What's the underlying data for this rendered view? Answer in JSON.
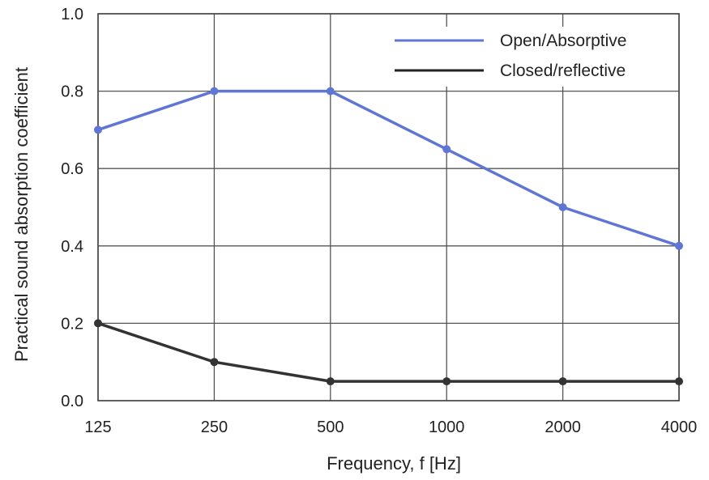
{
  "chart_data": {
    "type": "line",
    "title": "",
    "xlabel": "Frequency, f [Hz]",
    "ylabel": "Practical sound absorption coefficient",
    "categories": [
      "125",
      "250",
      "500",
      "1000",
      "2000",
      "4000"
    ],
    "ylim": [
      0.0,
      1.0
    ],
    "yticks": [
      "0.0",
      "0.2",
      "0.4",
      "0.6",
      "0.8",
      "1.0"
    ],
    "grid": true,
    "legend_position": "top-right",
    "series": [
      {
        "name": "Open/Absorptive",
        "color": "#6076d4",
        "values": [
          0.7,
          0.8,
          0.8,
          0.65,
          0.5,
          0.4
        ]
      },
      {
        "name": "Closed/reflective",
        "color": "#333333",
        "values": [
          0.2,
          0.1,
          0.05,
          0.05,
          0.05,
          0.05
        ]
      }
    ]
  }
}
